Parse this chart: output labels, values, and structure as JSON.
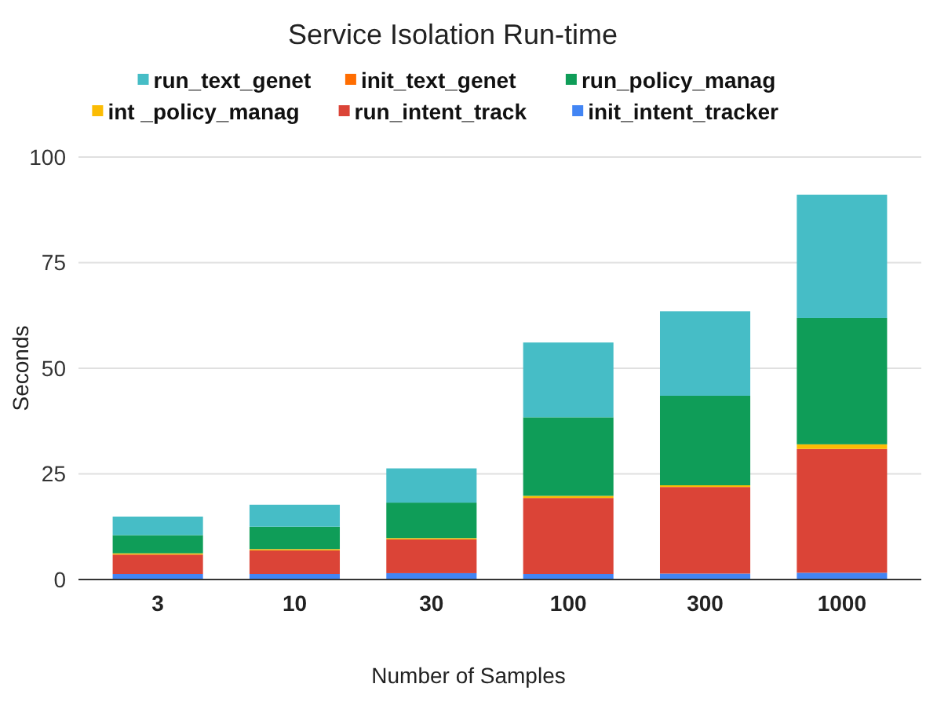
{
  "chart_data": {
    "type": "bar",
    "title": "Service Isolation Run-time",
    "xlabel": "Number of Samples",
    "ylabel": "Seconds",
    "categories": [
      "3",
      "10",
      "30",
      "100",
      "300",
      "1000"
    ],
    "stacked": true,
    "ylim": [
      0,
      100
    ],
    "yticks": [
      0,
      25,
      50,
      75,
      100
    ],
    "grid": "y",
    "legend": "top",
    "series": [
      {
        "name": "init_intent_tracker",
        "color": "#4285f4",
        "values": [
          1.3,
          1.3,
          1.5,
          1.3,
          1.4,
          1.6
        ]
      },
      {
        "name": "run_intent_track",
        "color": "#db4437",
        "values": [
          4.6,
          5.6,
          8.0,
          18.0,
          20.5,
          29.3
        ]
      },
      {
        "name": "int _policy_manag",
        "color": "#fbbc04",
        "values": [
          0.3,
          0.3,
          0.3,
          0.5,
          0.4,
          1.1
        ]
      },
      {
        "name": "run_policy_manag",
        "color": "#0f9d58",
        "values": [
          4.3,
          5.3,
          8.4,
          18.6,
          21.2,
          29.9
        ]
      },
      {
        "name": "init_text_genet",
        "color": "#ff6d01",
        "values": [
          null,
          null,
          null,
          null,
          null,
          null
        ]
      },
      {
        "name": "run_text_genet",
        "color": "#46bdc6",
        "values": [
          4.4,
          5.2,
          8.1,
          17.7,
          20.0,
          29.2
        ]
      }
    ]
  }
}
